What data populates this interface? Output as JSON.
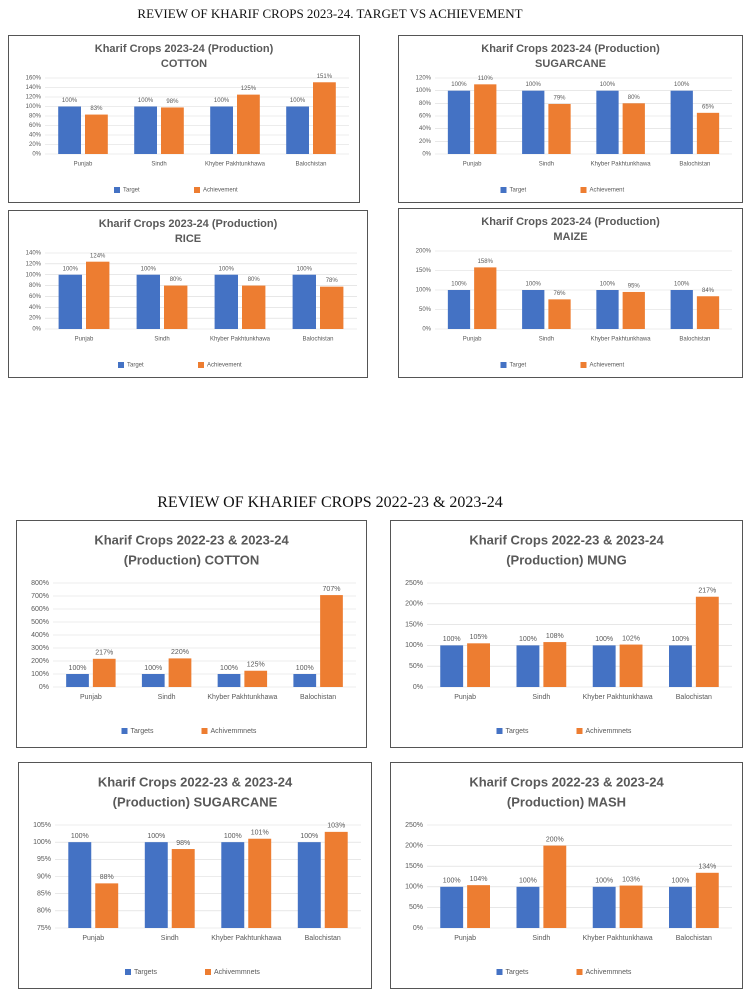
{
  "headings": [
    "REVIEW OF KHARIF CROPS 2023-24. TARGET VS ACHIEVEMENT",
    "REVIEW OF KHARIEF CROPS 2022-23 & 2023-24"
  ],
  "chart_data": [
    {
      "type": "bar",
      "title": "Kharif Crops 2023-24 (Production)",
      "subtitle": "COTTON",
      "categories": [
        "Punjab",
        "Sindh",
        "Khyber Pakhtunkhawa",
        "Balochistan"
      ],
      "series": [
        {
          "name": "Target",
          "color": "#4472c4",
          "values": [
            100,
            100,
            100,
            100
          ],
          "value_labels": [
            "100%",
            "100%",
            "100%",
            "100%"
          ]
        },
        {
          "name": "Achievement",
          "color": "#ed7d31",
          "values": [
            83,
            98,
            125,
            151
          ],
          "value_labels": [
            "83%",
            "98%",
            "125%",
            "151%"
          ]
        }
      ],
      "ylim": [
        0,
        160
      ],
      "yticks": [
        {
          "value": 0,
          "label": "0%"
        },
        {
          "value": 20,
          "label": "20%"
        },
        {
          "value": 40,
          "label": "40%"
        },
        {
          "value": 60,
          "label": "60%"
        },
        {
          "value": 80,
          "label": "80%"
        },
        {
          "value": 100,
          "label": "100%"
        },
        {
          "value": 120,
          "label": "120%"
        },
        {
          "value": 140,
          "label": "140%"
        },
        {
          "value": 160,
          "label": "160%"
        }
      ],
      "grid": true,
      "legend": "bottom"
    },
    {
      "type": "bar",
      "title": "Kharif Crops 2023-24 (Production)",
      "subtitle": "SUGARCANE",
      "categories": [
        "Punjab",
        "Sindh",
        "Khyber Pakhtunkhawa",
        "Balochistan"
      ],
      "series": [
        {
          "name": "Target",
          "color": "#4472c4",
          "values": [
            100,
            100,
            100,
            100
          ],
          "value_labels": [
            "100%",
            "100%",
            "100%",
            "100%"
          ]
        },
        {
          "name": "Achievement",
          "color": "#ed7d31",
          "values": [
            110,
            79,
            80,
            65
          ],
          "value_labels": [
            "110%",
            "79%",
            "80%",
            "65%"
          ]
        }
      ],
      "ylim": [
        0,
        120
      ],
      "yticks": [
        {
          "value": 0,
          "label": "0%"
        },
        {
          "value": 20,
          "label": "20%"
        },
        {
          "value": 40,
          "label": "40%"
        },
        {
          "value": 60,
          "label": "60%"
        },
        {
          "value": 80,
          "label": "80%"
        },
        {
          "value": 100,
          "label": "100%"
        },
        {
          "value": 120,
          "label": "120%"
        }
      ],
      "grid": true,
      "legend": "bottom"
    },
    {
      "type": "bar",
      "title": "Kharif Crops 2023-24 (Production)",
      "subtitle": "RICE",
      "categories": [
        "Punjab",
        "Sindh",
        "Khyber Pakhtunkhawa",
        "Balochistan"
      ],
      "series": [
        {
          "name": "Target",
          "color": "#4472c4",
          "values": [
            100,
            100,
            100,
            100
          ],
          "value_labels": [
            "100%",
            "100%",
            "100%",
            "100%"
          ]
        },
        {
          "name": "Achievement",
          "color": "#ed7d31",
          "values": [
            124,
            80,
            80,
            78
          ],
          "value_labels": [
            "124%",
            "80%",
            "80%",
            "78%"
          ]
        }
      ],
      "ylim": [
        0,
        140
      ],
      "yticks": [
        {
          "value": 0,
          "label": "0%"
        },
        {
          "value": 20,
          "label": "20%"
        },
        {
          "value": 40,
          "label": "40%"
        },
        {
          "value": 60,
          "label": "60%"
        },
        {
          "value": 80,
          "label": "80%"
        },
        {
          "value": 100,
          "label": "100%"
        },
        {
          "value": 120,
          "label": "120%"
        },
        {
          "value": 140,
          "label": "140%"
        }
      ],
      "grid": true,
      "legend": "bottom"
    },
    {
      "type": "bar",
      "title": "Kharif Crops 2023-24 (Production)",
      "subtitle": "MAIZE",
      "categories": [
        "Punjab",
        "Sindh",
        "Khyber Pakhtunkhawa",
        "Balochistan"
      ],
      "series": [
        {
          "name": "Target",
          "color": "#4472c4",
          "values": [
            100,
            100,
            100,
            100
          ],
          "value_labels": [
            "100%",
            "100%",
            "100%",
            "100%"
          ]
        },
        {
          "name": "Achievement",
          "color": "#ed7d31",
          "values": [
            158,
            76,
            95,
            84
          ],
          "value_labels": [
            "158%",
            "76%",
            "95%",
            "84%"
          ]
        }
      ],
      "ylim": [
        0,
        200
      ],
      "yticks": [
        {
          "value": 0,
          "label": "0%"
        },
        {
          "value": 50,
          "label": "50%"
        },
        {
          "value": 100,
          "label": "100%"
        },
        {
          "value": 150,
          "label": "150%"
        },
        {
          "value": 200,
          "label": "200%"
        }
      ],
      "grid": true,
      "legend": "bottom"
    },
    {
      "type": "bar",
      "title": "Kharif Crops 2022-23 & 2023-24",
      "subtitle": "(Production)  COTTON",
      "categories": [
        "Punjab",
        "Sindh",
        "Khyber Pakhtunkhawa",
        "Balochistan"
      ],
      "series": [
        {
          "name": "Targets",
          "color": "#4472c4",
          "values": [
            100,
            100,
            100,
            100
          ],
          "value_labels": [
            "100%",
            "100%",
            "100%",
            "100%"
          ]
        },
        {
          "name": "Achivemmnets",
          "color": "#ed7d31",
          "values": [
            217,
            220,
            125,
            707
          ],
          "value_labels": [
            "217%",
            "220%",
            "125%",
            "707%"
          ]
        }
      ],
      "ylim": [
        0,
        800
      ],
      "yticks": [
        {
          "value": 0,
          "label": "0%"
        },
        {
          "value": 100,
          "label": "100%"
        },
        {
          "value": 200,
          "label": "200%"
        },
        {
          "value": 300,
          "label": "300%"
        },
        {
          "value": 400,
          "label": "400%"
        },
        {
          "value": 500,
          "label": "500%"
        },
        {
          "value": 600,
          "label": "600%"
        },
        {
          "value": 700,
          "label": "700%"
        },
        {
          "value": 800,
          "label": "800%"
        }
      ],
      "grid": true,
      "legend": "bottom"
    },
    {
      "type": "bar",
      "title": "Kharif Crops 2022-23 & 2023-24",
      "subtitle": "(Production)  MUNG",
      "categories": [
        "Punjab",
        "Sindh",
        "Khyber Pakhtunkhawa",
        "Balochistan"
      ],
      "series": [
        {
          "name": "Targets",
          "color": "#4472c4",
          "values": [
            100,
            100,
            100,
            100
          ],
          "value_labels": [
            "100%",
            "100%",
            "100%",
            "100%"
          ]
        },
        {
          "name": "Achivemmnets",
          "color": "#ed7d31",
          "values": [
            105,
            108,
            102,
            217
          ],
          "value_labels": [
            "105%",
            "108%",
            "102%",
            "217%"
          ]
        }
      ],
      "ylim": [
        0,
        250
      ],
      "yticks": [
        {
          "value": 0,
          "label": "0%"
        },
        {
          "value": 50,
          "label": "50%"
        },
        {
          "value": 100,
          "label": "100%"
        },
        {
          "value": 150,
          "label": "150%"
        },
        {
          "value": 200,
          "label": "200%"
        },
        {
          "value": 250,
          "label": "250%"
        }
      ],
      "grid": true,
      "legend": "bottom"
    },
    {
      "type": "bar",
      "title": "Kharif Crops 2022-23 & 2023-24",
      "subtitle": "(Production)  SUGARCANE",
      "categories": [
        "Punjab",
        "Sindh",
        "Khyber Pakhtunkhawa",
        "Balochistan"
      ],
      "series": [
        {
          "name": "Targets",
          "color": "#4472c4",
          "values": [
            100,
            100,
            100,
            100
          ],
          "value_labels": [
            "100%",
            "100%",
            "100%",
            "100%"
          ]
        },
        {
          "name": "Achivemmnets",
          "color": "#ed7d31",
          "values": [
            88,
            98,
            101,
            103
          ],
          "value_labels": [
            "88%",
            "98%",
            "101%",
            "103%"
          ]
        }
      ],
      "ylim": [
        75,
        105
      ],
      "yticks": [
        {
          "value": 75,
          "label": "75%"
        },
        {
          "value": 80,
          "label": "80%"
        },
        {
          "value": 85,
          "label": "85%"
        },
        {
          "value": 90,
          "label": "90%"
        },
        {
          "value": 95,
          "label": "95%"
        },
        {
          "value": 100,
          "label": "100%"
        },
        {
          "value": 105,
          "label": "105%"
        }
      ],
      "grid": true,
      "legend": "bottom"
    },
    {
      "type": "bar",
      "title": "Kharif Crops 2022-23 & 2023-24",
      "subtitle": "(Production)  MASH",
      "categories": [
        "Punjab",
        "Sindh",
        "Khyber Pakhtunkhawa",
        "Balochistan"
      ],
      "series": [
        {
          "name": "Targets",
          "color": "#4472c4",
          "values": [
            100,
            100,
            100,
            100
          ],
          "value_labels": [
            "100%",
            "100%",
            "100%",
            "100%"
          ]
        },
        {
          "name": "Achivemmnets",
          "color": "#ed7d31",
          "values": [
            104,
            200,
            103,
            134
          ],
          "value_labels": [
            "104%",
            "200%",
            "103%",
            "134%"
          ]
        }
      ],
      "ylim": [
        0,
        250
      ],
      "yticks": [
        {
          "value": 0,
          "label": "0%"
        },
        {
          "value": 50,
          "label": "50%"
        },
        {
          "value": 100,
          "label": "100%"
        },
        {
          "value": 150,
          "label": "150%"
        },
        {
          "value": 200,
          "label": "200%"
        },
        {
          "value": 250,
          "label": "250%"
        }
      ],
      "grid": true,
      "legend": "bottom"
    }
  ]
}
